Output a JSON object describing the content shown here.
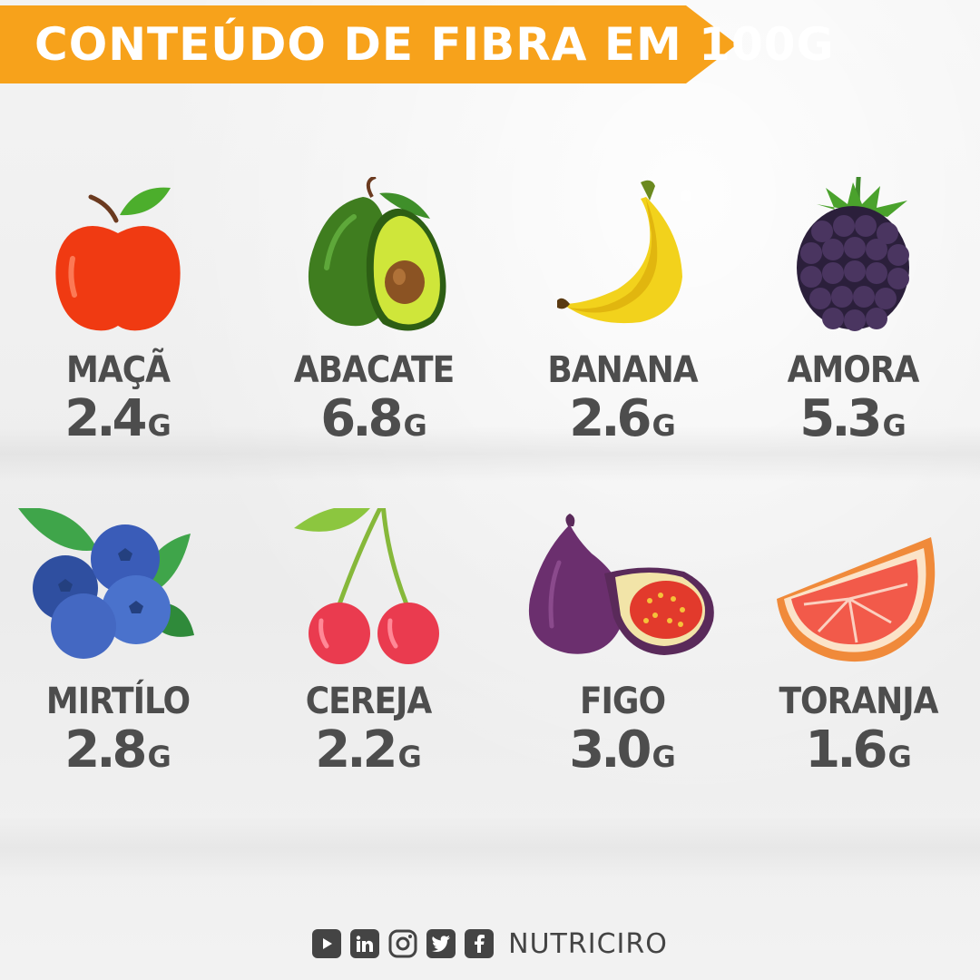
{
  "header": {
    "title": "CONTEÚDO DE FIBRA EM 100G",
    "accent": "#f7a21b"
  },
  "fruits": [
    {
      "name": "MAÇÃ",
      "value": "2.4",
      "unit": "G",
      "icon": "apple-icon"
    },
    {
      "name": "ABACATE",
      "value": "6.8",
      "unit": "G",
      "icon": "avocado-icon"
    },
    {
      "name": "BANANA",
      "value": "2.6",
      "unit": "G",
      "icon": "banana-icon"
    },
    {
      "name": "AMORA",
      "value": "5.3",
      "unit": "G",
      "icon": "blackberry-icon"
    },
    {
      "name": "MIRTÍLO",
      "value": "2.8",
      "unit": "G",
      "icon": "blueberry-icon"
    },
    {
      "name": "CEREJA",
      "value": "2.2",
      "unit": "G",
      "icon": "cherry-icon"
    },
    {
      "name": "FIGO",
      "value": "3.0",
      "unit": "G",
      "icon": "fig-icon"
    },
    {
      "name": "TORANJA",
      "value": "1.6",
      "unit": "G",
      "icon": "grapefruit-icon"
    }
  ],
  "footer": {
    "social": [
      "youtube-icon",
      "linkedin-icon",
      "instagram-icon",
      "twitter-icon",
      "facebook-icon"
    ],
    "brand": "NUTRICIRO"
  }
}
